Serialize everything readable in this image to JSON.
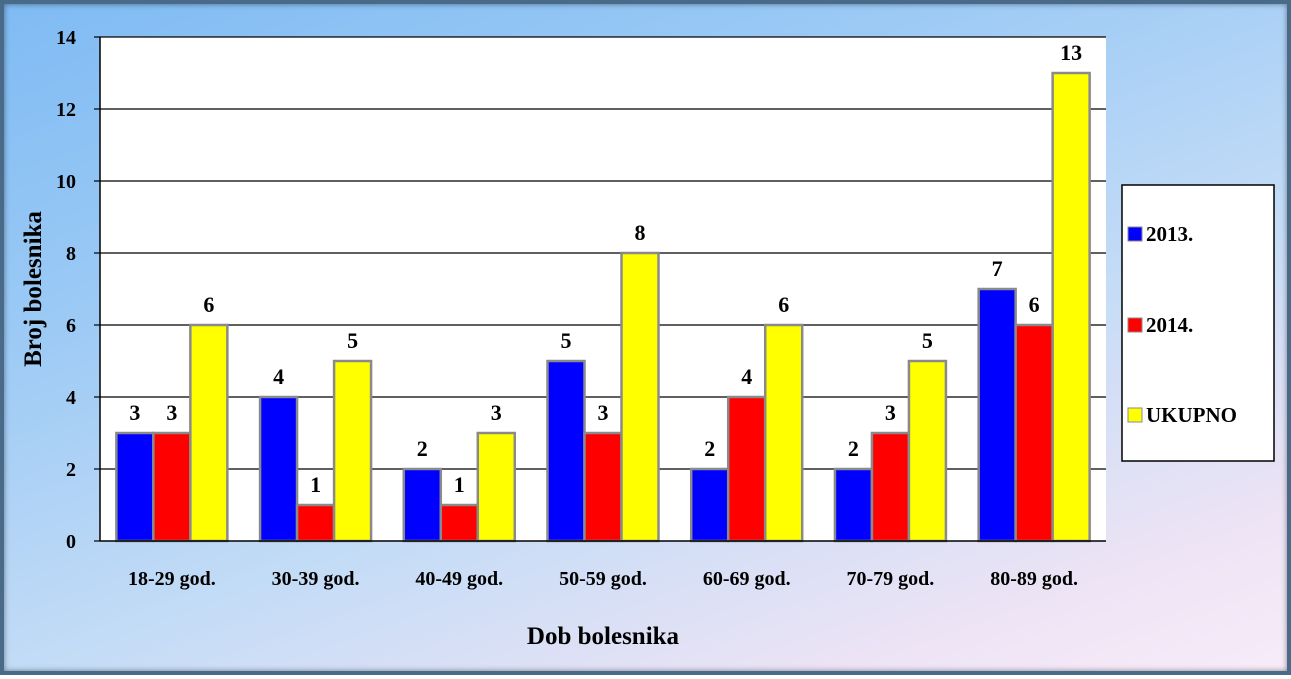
{
  "chart_data": {
    "type": "bar",
    "title": "",
    "xlabel": "Dob bolesnika",
    "ylabel": "Broj bolesnika",
    "ylim": [
      0,
      14
    ],
    "yticks": [
      0,
      2,
      4,
      6,
      8,
      10,
      12,
      14
    ],
    "grid": true,
    "legend_position": "right",
    "categories": [
      "18-29 god.",
      "30-39 god.",
      "40-49 god.",
      "50-59 god.",
      "60-69 god.",
      "70-79 god.",
      "80-89 god."
    ],
    "series": [
      {
        "name": "2013.",
        "color": "#0000ff",
        "values": [
          3,
          4,
          2,
          5,
          2,
          2,
          7
        ]
      },
      {
        "name": "2014.",
        "color": "#ff0000",
        "values": [
          3,
          1,
          1,
          3,
          4,
          3,
          6
        ]
      },
      {
        "name": "UKUPNO",
        "color": "#ffff00",
        "values": [
          6,
          5,
          3,
          8,
          6,
          5,
          13
        ]
      }
    ]
  }
}
